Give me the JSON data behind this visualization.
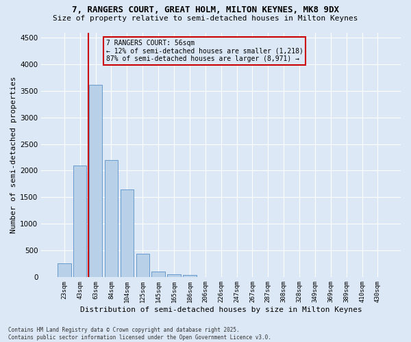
{
  "title_line1": "7, RANGERS COURT, GREAT HOLM, MILTON KEYNES, MK8 9DX",
  "title_line2": "Size of property relative to semi-detached houses in Milton Keynes",
  "xlabel": "Distribution of semi-detached houses by size in Milton Keynes",
  "ylabel": "Number of semi-detached properties",
  "categories": [
    "23sqm",
    "43sqm",
    "63sqm",
    "84sqm",
    "104sqm",
    "125sqm",
    "145sqm",
    "165sqm",
    "186sqm",
    "206sqm",
    "226sqm",
    "247sqm",
    "267sqm",
    "287sqm",
    "308sqm",
    "328sqm",
    "349sqm",
    "369sqm",
    "389sqm",
    "410sqm",
    "430sqm"
  ],
  "values": [
    250,
    2100,
    3620,
    2200,
    1640,
    440,
    100,
    55,
    40,
    0,
    0,
    0,
    0,
    0,
    0,
    0,
    0,
    0,
    0,
    0,
    0
  ],
  "bar_color": "#b8d0e8",
  "bar_edge_color": "#6699cc",
  "vline_x": 1.55,
  "vline_color": "#cc0000",
  "annotation_title": "7 RANGERS COURT: 56sqm",
  "annotation_line1": "← 12% of semi-detached houses are smaller (1,218)",
  "annotation_line2": "87% of semi-detached houses are larger (8,971) →",
  "annotation_box_color": "#cc0000",
  "ylim": [
    0,
    4600
  ],
  "yticks": [
    0,
    500,
    1000,
    1500,
    2000,
    2500,
    3000,
    3500,
    4000,
    4500
  ],
  "background_color": "#dce8f5",
  "grid_color": "#ffffff",
  "footer_line1": "Contains HM Land Registry data © Crown copyright and database right 2025.",
  "footer_line2": "Contains public sector information licensed under the Open Government Licence v3.0."
}
